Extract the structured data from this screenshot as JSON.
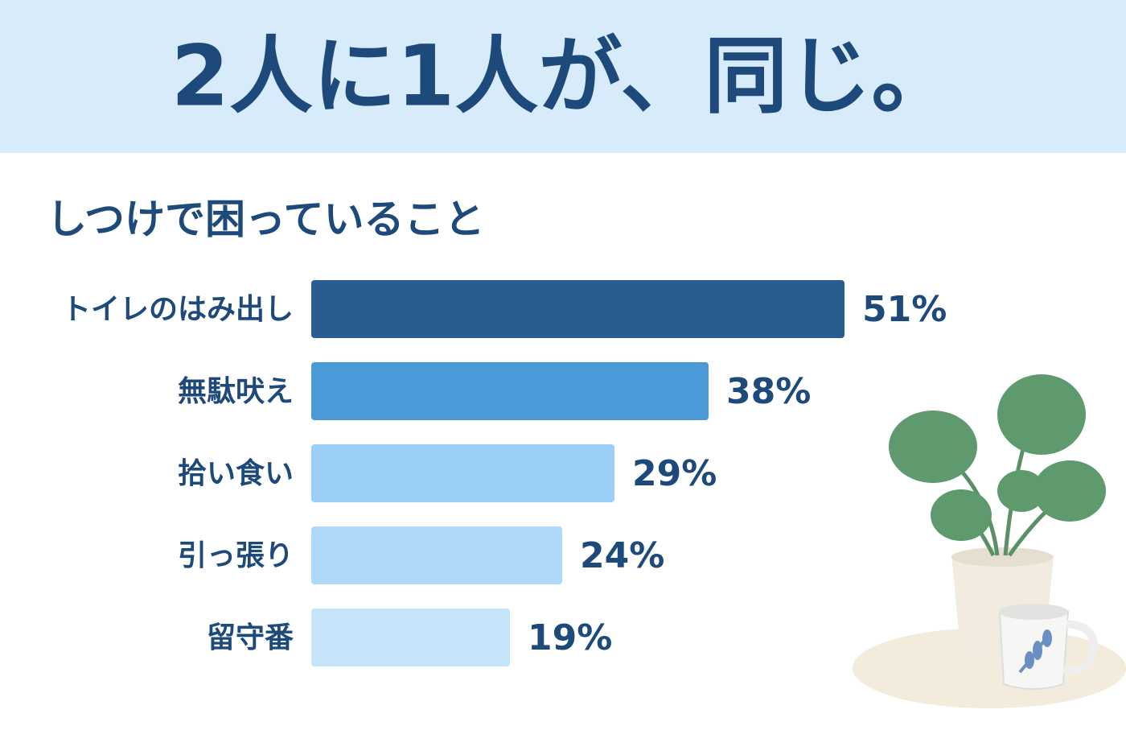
{
  "chart_data": {
    "type": "bar",
    "orientation": "horizontal",
    "title": "2人に1人が、同じ。",
    "subtitle": "しつけで困っていること",
    "categories": [
      "トイレのはみ出し",
      "無駄吠え",
      "拾い食い",
      "引っ張り",
      "留守番"
    ],
    "values": [
      51,
      38,
      29,
      24,
      19
    ],
    "value_labels": [
      "51%",
      "38%",
      "29%",
      "24%",
      "19%"
    ],
    "colors": [
      "#2a5d8f",
      "#4a9ad8",
      "#9ccff5",
      "#aed8f7",
      "#c6e4fa"
    ]
  }
}
